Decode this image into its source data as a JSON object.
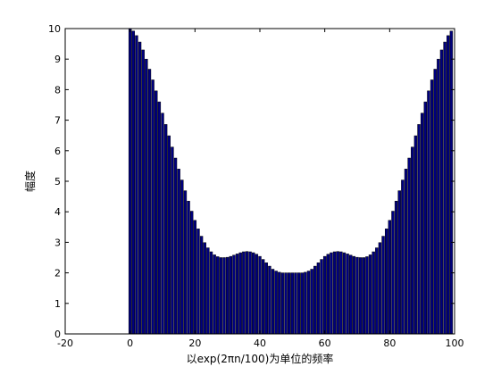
{
  "chart_data": {
    "type": "bar",
    "title": "",
    "xlabel": "以exp(2πn/100)为单位的频率",
    "ylabel": "幅度",
    "xlim": [
      -20,
      100
    ],
    "ylim": [
      0,
      10
    ],
    "xticks": [
      -20,
      0,
      20,
      40,
      60,
      80,
      100
    ],
    "yticks": [
      0,
      1,
      2,
      3,
      4,
      5,
      6,
      7,
      8,
      9,
      10
    ],
    "grid": false,
    "bar_color": "#00007f",
    "edge_color": "#000000",
    "series": [
      {
        "x": [
          0,
          1,
          2,
          3,
          4,
          5,
          6,
          7,
          8,
          9,
          10,
          11,
          12,
          13,
          14,
          15,
          16,
          17,
          18,
          19,
          20,
          21,
          22,
          23,
          24,
          25,
          26,
          27,
          28,
          29,
          30,
          31,
          32,
          33,
          34,
          35,
          36,
          37,
          38,
          39,
          40,
          41,
          42,
          43,
          44,
          45,
          46,
          47,
          48,
          49,
          50,
          51,
          52,
          53,
          54,
          55,
          56,
          57,
          58,
          59,
          60,
          61,
          62,
          63,
          64,
          65,
          66,
          67,
          68,
          69,
          70,
          71,
          72,
          73,
          74,
          75,
          76,
          77,
          78,
          79,
          80,
          81,
          82,
          83,
          84,
          85,
          86,
          87,
          88,
          89,
          90,
          91,
          92,
          93,
          94,
          95,
          96,
          97,
          98,
          99
        ],
        "values": [
          10.0,
          9.92,
          9.77,
          9.56,
          9.3,
          9.0,
          8.67,
          8.32,
          7.96,
          7.6,
          7.23,
          6.86,
          6.49,
          6.12,
          5.76,
          5.4,
          5.04,
          4.69,
          4.35,
          4.02,
          3.72,
          3.44,
          3.2,
          2.99,
          2.82,
          2.69,
          2.59,
          2.53,
          2.5,
          2.5,
          2.51,
          2.54,
          2.58,
          2.62,
          2.66,
          2.69,
          2.7,
          2.69,
          2.66,
          2.61,
          2.54,
          2.44,
          2.33,
          2.22,
          2.12,
          2.06,
          2.02,
          2.0,
          2.0,
          2.0,
          2.0,
          2.0,
          2.0,
          2.0,
          2.02,
          2.06,
          2.12,
          2.22,
          2.33,
          2.44,
          2.54,
          2.61,
          2.66,
          2.69,
          2.7,
          2.69,
          2.66,
          2.62,
          2.58,
          2.54,
          2.51,
          2.5,
          2.5,
          2.53,
          2.59,
          2.69,
          2.82,
          2.99,
          3.2,
          3.44,
          3.72,
          4.02,
          4.35,
          4.69,
          5.04,
          5.4,
          5.76,
          6.12,
          6.49,
          6.86,
          7.23,
          7.6,
          7.96,
          8.32,
          8.67,
          9.0,
          9.3,
          9.56,
          9.77,
          9.92
        ]
      }
    ]
  }
}
